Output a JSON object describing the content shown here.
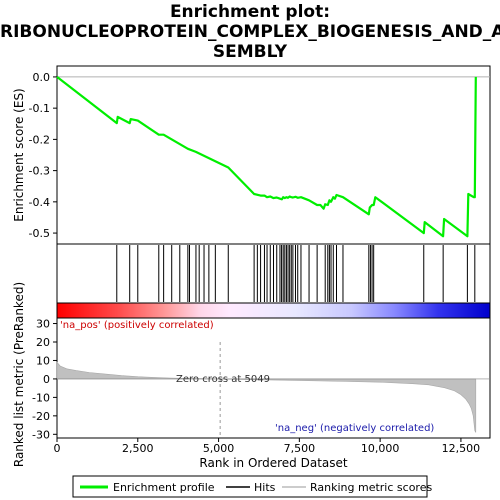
{
  "title_lines": [
    "Enrichment plot:",
    "RIBONUCLEOPROTEIN_COMPLEX_BIOGENESIS_AND_AS",
    "SEMBLY"
  ],
  "chart_data": {
    "type": "line",
    "x_axis": {
      "label": "Rank in Ordered Dataset",
      "range": [
        0,
        13400
      ],
      "ticks": [
        0,
        2500,
        5000,
        7500,
        10000,
        12500
      ],
      "tick_labels": [
        "0",
        "2,500",
        "5,000",
        "7,500",
        "10,000",
        "12,500"
      ]
    },
    "es_panel": {
      "ylabel": "Enrichment score (ES)",
      "ylim": [
        -0.535,
        0.035
      ],
      "yticks": [
        0.0,
        -0.1,
        -0.2,
        -0.3,
        -0.4,
        -0.5
      ],
      "ytick_labels": [
        "0.0",
        "-0.1",
        "-0.2",
        "-0.3",
        "-0.4",
        "-0.5"
      ],
      "grid": false,
      "series": [
        {
          "name": "Enrichment profile",
          "color": "#00ee00",
          "x": [
            0,
            1850,
            1880,
            2250,
            2280,
            2500,
            3150,
            3300,
            4050,
            4300,
            4900,
            5300,
            6100,
            6300,
            6420,
            6500,
            6600,
            6700,
            6800,
            6900,
            6960,
            7000,
            7050,
            7100,
            7150,
            7200,
            7250,
            7300,
            7380,
            7450,
            7550,
            7800,
            8050,
            8150,
            8250,
            8300,
            8380,
            8430,
            8480,
            8550,
            8600,
            8650,
            8850,
            9650,
            9680,
            9750,
            9800,
            9850,
            11350,
            11380,
            11950,
            11980,
            12700,
            12730,
            12900,
            12930,
            12960
          ],
          "y": [
            0.0,
            -0.148,
            -0.128,
            -0.148,
            -0.135,
            -0.14,
            -0.185,
            -0.185,
            -0.23,
            -0.24,
            -0.27,
            -0.29,
            -0.375,
            -0.38,
            -0.38,
            -0.385,
            -0.383,
            -0.388,
            -0.386,
            -0.39,
            -0.392,
            -0.385,
            -0.388,
            -0.385,
            -0.387,
            -0.383,
            -0.385,
            -0.386,
            -0.384,
            -0.387,
            -0.385,
            -0.395,
            -0.41,
            -0.41,
            -0.422,
            -0.408,
            -0.41,
            -0.395,
            -0.4,
            -0.385,
            -0.39,
            -0.378,
            -0.385,
            -0.44,
            -0.418,
            -0.41,
            -0.41,
            -0.385,
            -0.5,
            -0.465,
            -0.51,
            -0.455,
            -0.51,
            -0.375,
            -0.385,
            -0.385,
            0.0
          ]
        }
      ]
    },
    "hits": [
      1850,
      2250,
      2500,
      3150,
      3300,
      3550,
      3800,
      4050,
      4100,
      4300,
      4400,
      4550,
      4700,
      4900,
      5300,
      6100,
      6200,
      6300,
      6420,
      6500,
      6600,
      6700,
      6800,
      6900,
      6950,
      7000,
      7050,
      7100,
      7150,
      7200,
      7250,
      7300,
      7380,
      7450,
      7550,
      7800,
      8050,
      8300,
      8380,
      8430,
      8480,
      8550,
      8650,
      8850,
      9650,
      9700,
      9750,
      9800,
      11350,
      11950,
      12700,
      12930
    ],
    "ranking_panel": {
      "ylabel": "Ranked list metric (PreRanked)",
      "ylim": [
        -32,
        33
      ],
      "yticks": [
        30,
        20,
        10,
        0,
        -10,
        -20,
        -30
      ],
      "ytick_labels": [
        "30",
        "20",
        "10",
        "0",
        "-10",
        "-20",
        "-30"
      ],
      "x": [
        0,
        100,
        300,
        600,
        1000,
        1500,
        2000,
        2500,
        3000,
        3500,
        4000,
        4500,
        5049,
        6000,
        7000,
        8000,
        9000,
        10000,
        11000,
        11500,
        12000,
        12300,
        12500,
        12650,
        12750,
        12820,
        12880,
        12930,
        12960
      ],
      "values": [
        9,
        7,
        5.5,
        4.5,
        3.5,
        2.6,
        1.8,
        1.2,
        0.8,
        0.5,
        0.3,
        0.15,
        0,
        -0.4,
        -0.7,
        -1.0,
        -1.4,
        -1.8,
        -2.6,
        -3.2,
        -4.8,
        -6.5,
        -8.5,
        -11,
        -13.5,
        -16,
        -20,
        -28,
        -29
      ],
      "zero_cross_label": "Zero cross at 5049",
      "zero_cross": 5049,
      "pos_label": "'na_pos' (positively correlated)",
      "neg_label": "'na_neg' (negatively correlated)"
    },
    "legend": {
      "placement": "bottom",
      "entries": [
        "Enrichment profile",
        "Hits",
        "Ranking metric scores"
      ]
    }
  }
}
